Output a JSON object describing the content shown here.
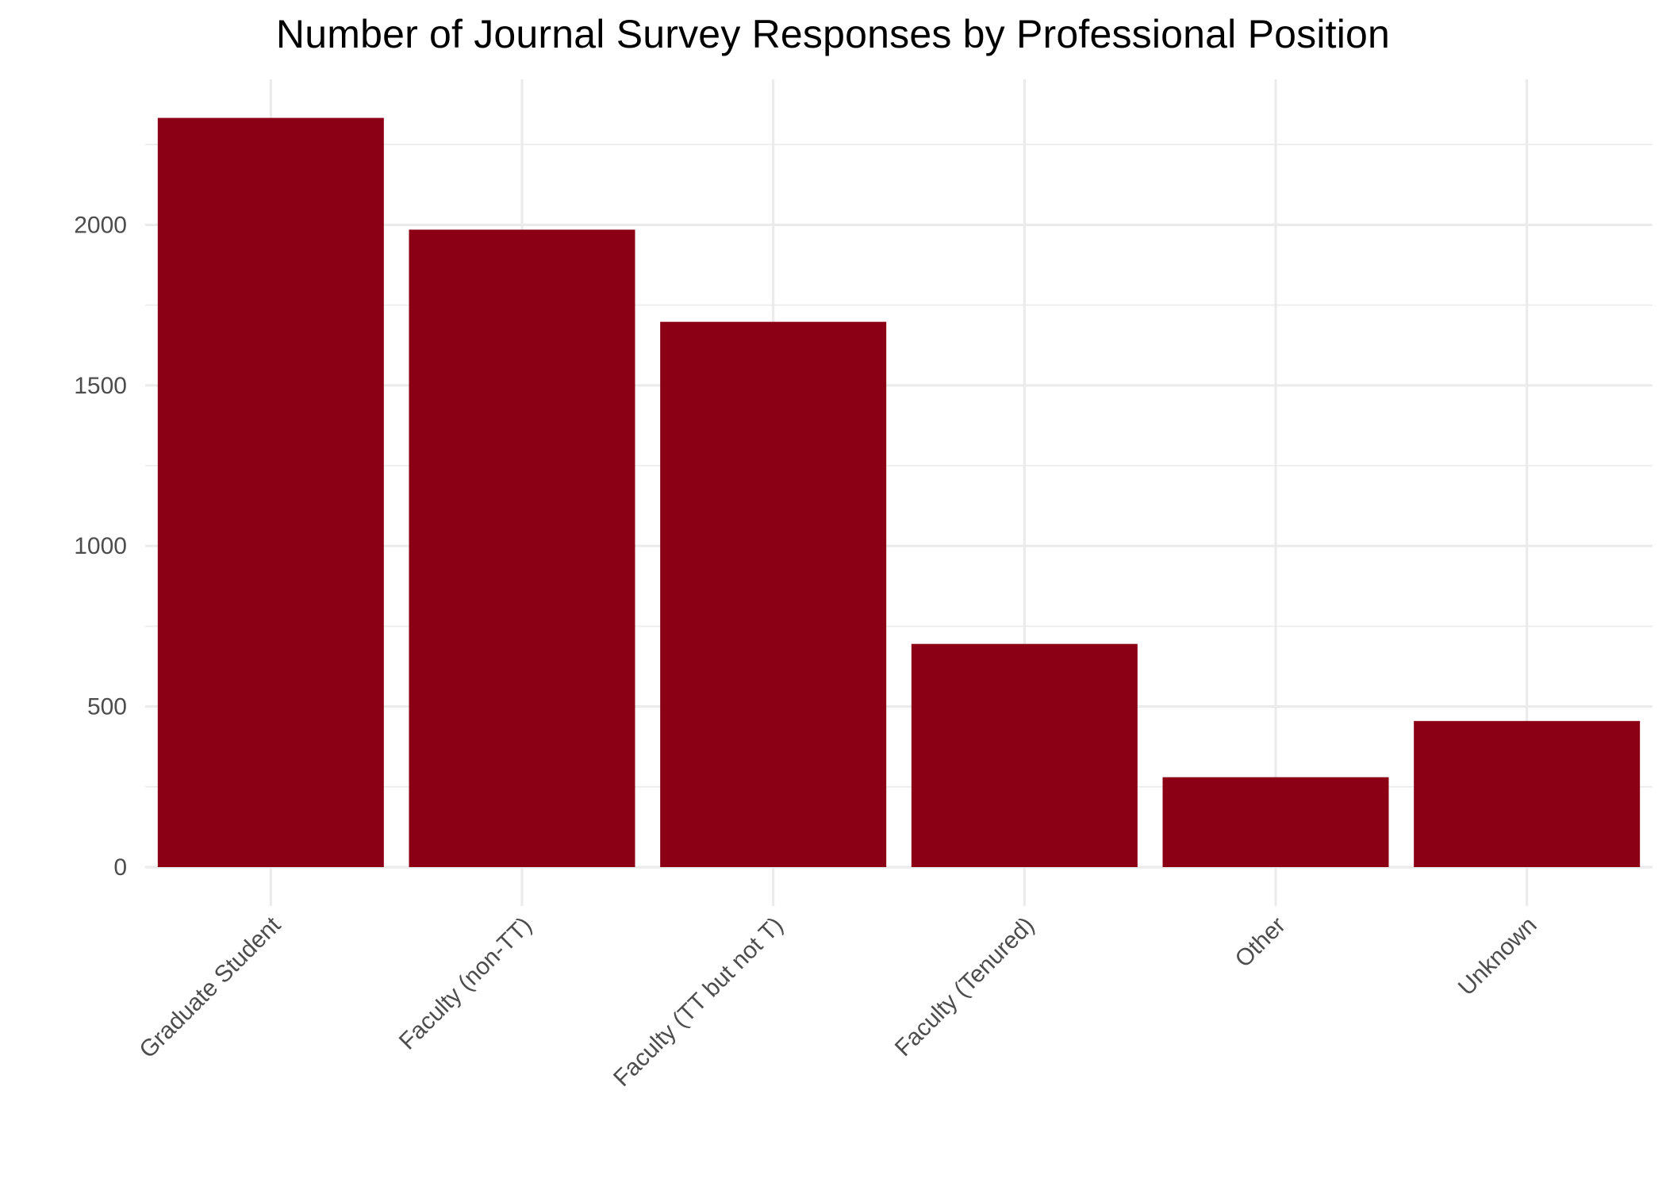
{
  "chart_data": {
    "type": "bar",
    "title": "Number of Journal Survey Responses by Professional Position",
    "xlabel": "",
    "ylabel": "",
    "categories": [
      "Graduate Student",
      "Faculty (non-TT)",
      "Faculty (TT but not T)",
      "Faculty (Tenured)",
      "Other",
      "Unknown"
    ],
    "values": [
      2333,
      1985,
      1698,
      695,
      280,
      455
    ],
    "ylim": [
      0,
      2350
    ],
    "yticks": [
      0,
      500,
      1000,
      1500,
      2000
    ],
    "grid": true,
    "legend": "none",
    "bar_color": "#8B0015",
    "grid_color": "#EBEBEB"
  }
}
